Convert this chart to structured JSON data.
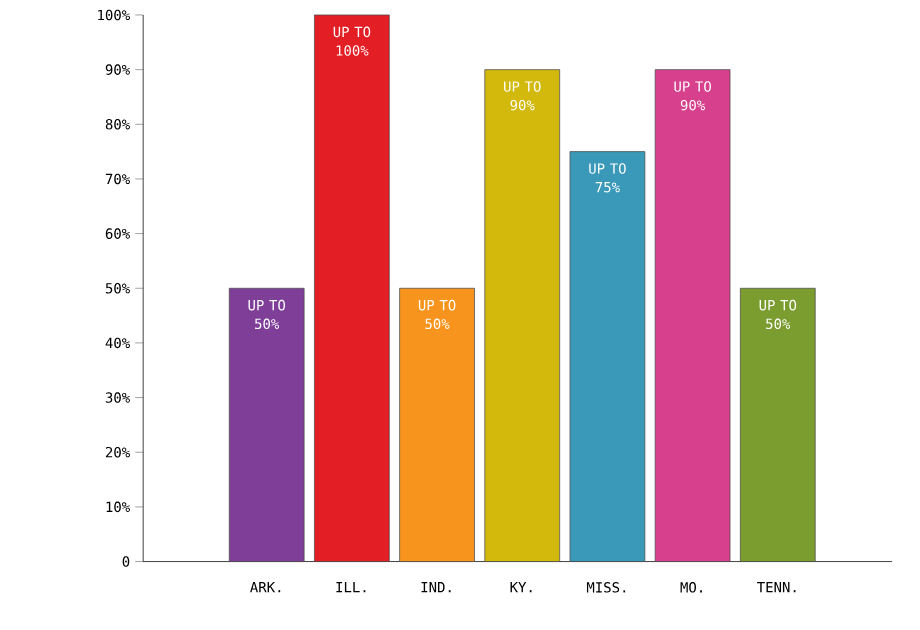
{
  "chart_data": {
    "type": "bar",
    "categories": [
      "ARK.",
      "ILL.",
      "IND.",
      "KY.",
      "MISS.",
      "MO.",
      "TENN."
    ],
    "values": [
      50,
      100,
      50,
      90,
      75,
      90,
      50
    ],
    "colors": [
      "#7f3f98",
      "#e31e24",
      "#f7941d",
      "#d2b90c",
      "#3a99b8",
      "#d6408c",
      "#7b9c2e"
    ],
    "value_labels": [
      "UP TO 50%",
      "UP TO 100%",
      "UP TO 50%",
      "UP TO 90%",
      "UP TO 75%",
      "UP TO 90%",
      "UP TO 50%"
    ],
    "ylim": [
      0,
      100
    ],
    "yticks": [
      0,
      {
        "value": 10,
        "label": "10%"
      },
      {
        "value": 20,
        "label": "20%"
      },
      {
        "value": 30,
        "label": "30%"
      },
      {
        "value": 40,
        "label": "40%"
      },
      {
        "value": 50,
        "label": "50%"
      },
      {
        "value": 60,
        "label": "60%"
      },
      {
        "value": 70,
        "label": "70%"
      },
      {
        "value": 80,
        "label": "80%"
      },
      {
        "value": 90,
        "label": "90%"
      },
      {
        "value": 100,
        "label": "100%"
      }
    ]
  }
}
